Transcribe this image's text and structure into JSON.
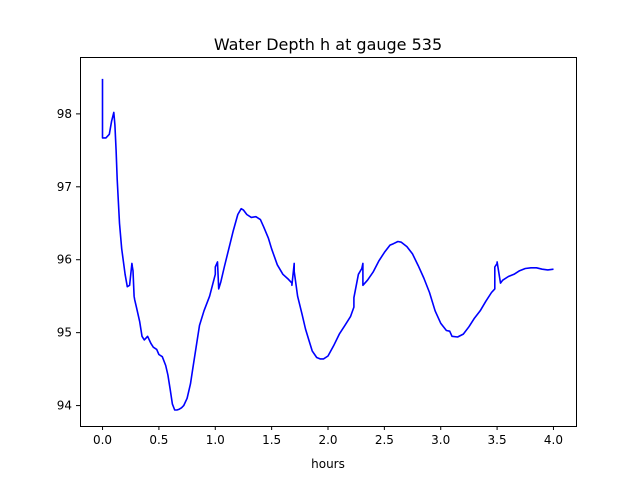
{
  "chart_data": {
    "type": "line",
    "title": "Water Depth h at gauge 535",
    "xlabel": "hours",
    "ylabel": "",
    "xlim": [
      -0.2,
      4.2
    ],
    "ylim": [
      93.72,
      98.78
    ],
    "xticks": [
      0.0,
      0.5,
      1.0,
      1.5,
      2.0,
      2.5,
      3.0,
      3.5,
      4.0
    ],
    "xtick_labels": [
      "0.0",
      "0.5",
      "1.0",
      "1.5",
      "2.0",
      "2.5",
      "3.0",
      "3.5",
      "4.0"
    ],
    "yticks": [
      94,
      95,
      96,
      97,
      98
    ],
    "ytick_labels": [
      "94",
      "95",
      "96",
      "97",
      "98"
    ],
    "grid": false,
    "series": [
      {
        "color": "#0000ff",
        "x": [
          0.0,
          0.0,
          0.03,
          0.06,
          0.08,
          0.1,
          0.11,
          0.12,
          0.13,
          0.15,
          0.17,
          0.2,
          0.22,
          0.24,
          0.26,
          0.265,
          0.27,
          0.28,
          0.285,
          0.3,
          0.33,
          0.35,
          0.37,
          0.4,
          0.43,
          0.45,
          0.48,
          0.5,
          0.53,
          0.56,
          0.58,
          0.6,
          0.62,
          0.64,
          0.66,
          0.68,
          0.7,
          0.72,
          0.75,
          0.78,
          0.8,
          0.83,
          0.86,
          0.9,
          0.95,
          1.0,
          1.0,
          1.02,
          1.03,
          1.03,
          1.05,
          1.08,
          1.12,
          1.16,
          1.2,
          1.23,
          1.25,
          1.28,
          1.32,
          1.36,
          1.4,
          1.43,
          1.47,
          1.5,
          1.55,
          1.6,
          1.65,
          1.68,
          1.68,
          1.7,
          1.7,
          1.73,
          1.77,
          1.8,
          1.83,
          1.86,
          1.9,
          1.93,
          1.96,
          2.0,
          2.05,
          2.1,
          2.15,
          2.2,
          2.23,
          2.23,
          2.27,
          2.3,
          2.31,
          2.31,
          2.35,
          2.4,
          2.45,
          2.5,
          2.55,
          2.58,
          2.62,
          2.65,
          2.7,
          2.75,
          2.8,
          2.85,
          2.9,
          2.95,
          3.0,
          3.05,
          3.08,
          3.1,
          3.15,
          3.2,
          3.25,
          3.3,
          3.35,
          3.4,
          3.45,
          3.48,
          3.48,
          3.5,
          3.5,
          3.53,
          3.55,
          3.6,
          3.65,
          3.7,
          3.75,
          3.8,
          3.85,
          3.9,
          3.95,
          4.0
        ],
        "y": [
          98.48,
          97.67,
          97.67,
          97.72,
          97.9,
          98.02,
          97.85,
          97.5,
          97.1,
          96.5,
          96.15,
          95.8,
          95.63,
          95.65,
          95.95,
          95.9,
          95.85,
          95.5,
          95.45,
          95.35,
          95.15,
          94.95,
          94.9,
          94.95,
          94.85,
          94.8,
          94.77,
          94.7,
          94.67,
          94.55,
          94.42,
          94.22,
          94.02,
          93.94,
          93.94,
          93.95,
          93.97,
          94.0,
          94.1,
          94.3,
          94.5,
          94.8,
          95.1,
          95.3,
          95.5,
          95.8,
          95.9,
          95.97,
          95.6,
          95.6,
          95.7,
          95.9,
          96.15,
          96.4,
          96.62,
          96.7,
          96.68,
          96.62,
          96.58,
          96.59,
          96.55,
          96.45,
          96.3,
          96.15,
          95.93,
          95.8,
          95.73,
          95.68,
          95.65,
          95.95,
          95.84,
          95.5,
          95.25,
          95.05,
          94.9,
          94.75,
          94.66,
          94.64,
          94.64,
          94.68,
          94.82,
          94.98,
          95.1,
          95.22,
          95.35,
          95.48,
          95.8,
          95.88,
          95.95,
          95.65,
          95.72,
          95.83,
          95.98,
          96.1,
          96.2,
          96.22,
          96.25,
          96.24,
          96.18,
          96.08,
          95.92,
          95.75,
          95.55,
          95.3,
          95.13,
          95.03,
          95.02,
          94.95,
          94.94,
          94.98,
          95.08,
          95.2,
          95.3,
          95.43,
          95.55,
          95.6,
          95.9,
          95.95,
          95.97,
          95.68,
          95.72,
          95.77,
          95.8,
          95.85,
          95.88,
          95.89,
          95.89,
          95.87,
          95.86,
          95.87
        ]
      }
    ]
  }
}
